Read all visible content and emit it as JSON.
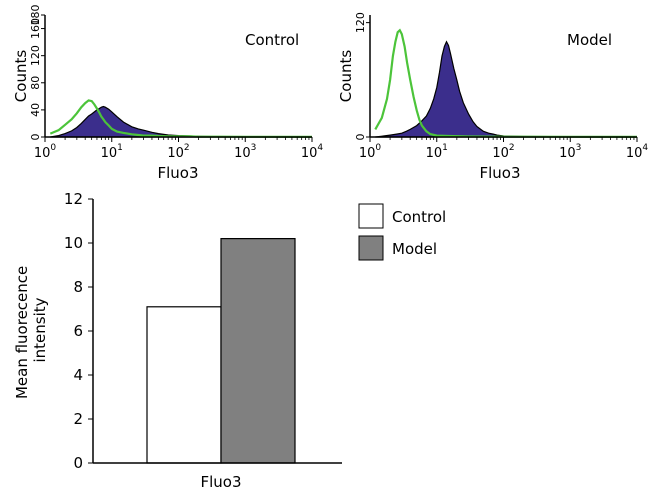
{
  "chart_data": [
    {
      "type": "area",
      "title": "Control",
      "xlabel": "Fluo3",
      "ylabel": "Counts",
      "xscale": "log",
      "xlim": [
        1,
        10000
      ],
      "ylim": [
        0,
        180
      ],
      "x_ticks": [
        {
          "base": "10",
          "exp": "0"
        },
        {
          "base": "10",
          "exp": "1"
        },
        {
          "base": "10",
          "exp": "2"
        },
        {
          "base": "10",
          "exp": "3"
        },
        {
          "base": "10",
          "exp": "4"
        }
      ],
      "y_ticks": [
        "0",
        "40",
        "80",
        "120",
        "160",
        "180"
      ],
      "series": [
        {
          "color": "#3b2e8c",
          "style": "filled",
          "x": [
            1.2,
            1.6,
            2.0,
            2.5,
            3.0,
            3.5,
            4.0,
            4.5,
            5.0,
            5.5,
            6.0,
            6.5,
            7.0,
            7.5,
            8.0,
            9.0,
            10,
            12,
            15,
            20,
            25,
            30,
            40,
            50,
            70,
            100,
            150,
            200,
            400,
            1000,
            10000
          ],
          "y": [
            0,
            2,
            5,
            9,
            14,
            20,
            26,
            31,
            34,
            37,
            40,
            42,
            44,
            45,
            44,
            41,
            37,
            30,
            22,
            15,
            12,
            10,
            7,
            5,
            3,
            2,
            1.5,
            1,
            0.5,
            0.3,
            0
          ]
        },
        {
          "color": "#4cc43a",
          "style": "line",
          "x": [
            1.2,
            1.6,
            2.0,
            2.5,
            3.0,
            3.5,
            4.0,
            4.5,
            5.0,
            5.5,
            6.0,
            6.5,
            7.0,
            7.5,
            8.0,
            9.0,
            10,
            12,
            15,
            20,
            25,
            30,
            40,
            50,
            70,
            100,
            150,
            200,
            400,
            1000,
            10000
          ],
          "y": [
            5,
            10,
            18,
            26,
            35,
            44,
            50,
            54,
            53,
            48,
            42,
            36,
            30,
            26,
            22,
            17,
            12,
            8,
            6,
            4,
            3,
            2,
            2,
            1.5,
            1,
            1,
            1,
            0.5,
            0.5,
            0.3,
            0.2
          ]
        }
      ]
    },
    {
      "type": "area",
      "title": "Model",
      "xlabel": "Fluo3",
      "ylabel": "Counts",
      "xscale": "log",
      "xlim": [
        1,
        10000
      ],
      "ylim": [
        0,
        128
      ],
      "x_ticks": [
        {
          "base": "10",
          "exp": "0"
        },
        {
          "base": "10",
          "exp": "1"
        },
        {
          "base": "10",
          "exp": "2"
        },
        {
          "base": "10",
          "exp": "3"
        },
        {
          "base": "10",
          "exp": "4"
        }
      ],
      "y_ticks": [
        "0",
        "120"
      ],
      "series": [
        {
          "color": "#3b2e8c",
          "style": "filled",
          "x": [
            1.2,
            1.6,
            2.0,
            2.5,
            3.0,
            3.5,
            4.0,
            5.0,
            6.0,
            7.0,
            8.0,
            9.0,
            10,
            11,
            12,
            13,
            14,
            15,
            16,
            18,
            20,
            22,
            25,
            30,
            35,
            40,
            50,
            60,
            70,
            80,
            100,
            200,
            10000
          ],
          "y": [
            0,
            1,
            2,
            3,
            4,
            6,
            8,
            12,
            17,
            22,
            30,
            40,
            52,
            68,
            85,
            95,
            100,
            96,
            88,
            72,
            60,
            48,
            36,
            24,
            16,
            11,
            6,
            4,
            3,
            2,
            1,
            0.5,
            0
          ]
        },
        {
          "color": "#4cc43a",
          "style": "line",
          "x": [
            1.2,
            1.5,
            1.8,
            2.0,
            2.2,
            2.4,
            2.6,
            2.8,
            3.0,
            3.3,
            3.6,
            4.0,
            4.5,
            5.0,
            5.5,
            6.0,
            7.0,
            8.0,
            10,
            15,
            30,
            100,
            1000,
            10000
          ],
          "y": [
            8,
            20,
            40,
            60,
            85,
            100,
            110,
            112,
            108,
            95,
            78,
            60,
            42,
            28,
            18,
            12,
            6,
            3,
            1.5,
            1,
            0.5,
            0.3,
            0.2,
            0.1
          ]
        }
      ]
    },
    {
      "type": "bar",
      "categories": [
        "Fluo3"
      ],
      "xlabel": "Fluo3",
      "ylabel": "Mean fluorecence intensity",
      "ylim": [
        0,
        12
      ],
      "y_ticks": [
        "0",
        "2",
        "4",
        "6",
        "8",
        "10",
        "12"
      ],
      "legend_position": "top-right",
      "series": [
        {
          "name": "Control",
          "values": [
            7.1
          ],
          "color": "#ffffff"
        },
        {
          "name": "Model",
          "values": [
            10.2
          ],
          "color": "#808080"
        }
      ]
    }
  ]
}
